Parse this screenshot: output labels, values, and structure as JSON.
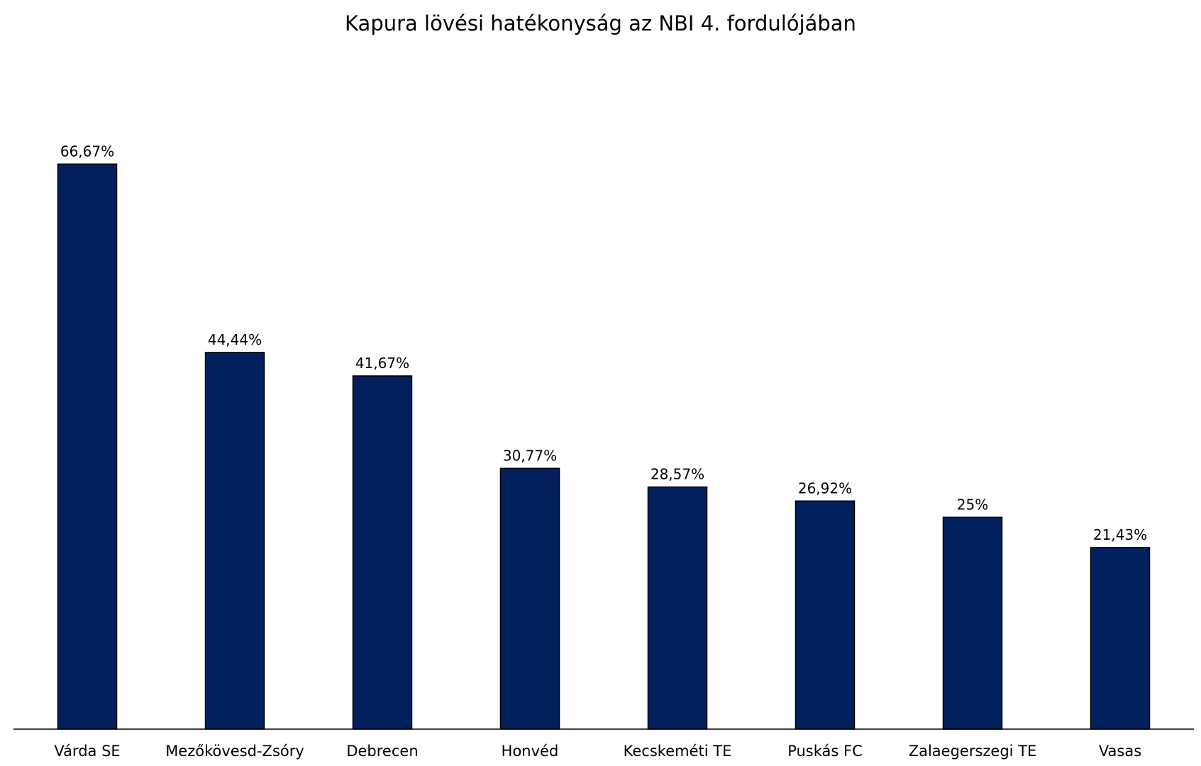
{
  "chart_data": {
    "type": "bar",
    "title": "Kapura lövési hatékonyság az NBI 4. fordulójában",
    "categories": [
      "Várda SE",
      "Mezőkövesd-Zsóry",
      "Debrecen",
      "Honvéd",
      "Kecskeméti TE",
      "Puskás FC",
      "Zalaegerszegi TE",
      "Vasas"
    ],
    "values": [
      66.67,
      44.44,
      41.67,
      30.77,
      28.57,
      26.92,
      25,
      21.43
    ],
    "value_labels": [
      "66,67%",
      "44,44%",
      "41,67%",
      "30,77%",
      "28,57%",
      "26,92%",
      "25%",
      "21,43%"
    ],
    "xlabel": "",
    "ylabel": "",
    "ylim": [
      0,
      80
    ],
    "grid": false,
    "legend": "none",
    "bar_color": "#02205b",
    "bar_edge_color": "#000000"
  }
}
